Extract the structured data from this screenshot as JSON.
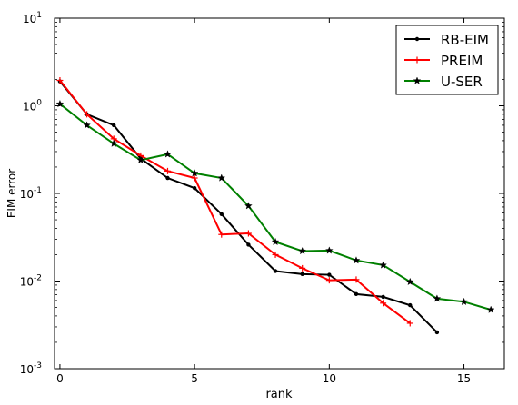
{
  "chart_data": {
    "type": "line",
    "xlabel": "rank",
    "ylabel": "EIM error",
    "xlim": [
      -0.2,
      16.5
    ],
    "ylim": [
      0.001,
      10
    ],
    "yscale": "log",
    "x_ticks": [
      0,
      5,
      10,
      15
    ],
    "x_tick_labels": [
      "0",
      "5",
      "10",
      "15"
    ],
    "y_ticks": [
      0.001,
      0.01,
      0.1,
      1,
      10
    ],
    "y_tick_labels": [
      {
        "base": "10",
        "exp": "-3"
      },
      {
        "base": "10",
        "exp": "-2"
      },
      {
        "base": "10",
        "exp": "-1"
      },
      {
        "base": "10",
        "exp": "0"
      },
      {
        "base": "10",
        "exp": "1"
      }
    ],
    "grid": false,
    "legend_position": "top-right",
    "series": [
      {
        "name": "RB-EIM",
        "color": "#000000",
        "marker": "dot",
        "x": [
          0,
          1,
          2,
          3,
          4,
          5,
          6,
          7,
          8,
          9,
          10,
          11,
          12,
          13,
          14
        ],
        "values": [
          1.9,
          0.8,
          0.6,
          0.25,
          0.15,
          0.115,
          0.058,
          0.026,
          0.013,
          0.012,
          0.0118,
          0.0071,
          0.0066,
          0.0053,
          0.0026
        ]
      },
      {
        "name": "PREIM",
        "color": "#ff0000",
        "marker": "plus",
        "x": [
          0,
          1,
          2,
          3,
          4,
          5,
          6,
          7,
          8,
          9,
          10,
          11,
          12,
          13
        ],
        "values": [
          1.95,
          0.8,
          0.42,
          0.27,
          0.18,
          0.15,
          0.034,
          0.035,
          0.02,
          0.014,
          0.0102,
          0.0104,
          0.0056,
          0.0033
        ]
      },
      {
        "name": "U-SER",
        "color": "#008000",
        "marker": "star",
        "x": [
          0,
          1,
          2,
          3,
          4,
          5,
          6,
          7,
          8,
          9,
          10,
          11,
          12,
          13,
          14,
          15,
          16
        ],
        "values": [
          1.05,
          0.6,
          0.37,
          0.24,
          0.28,
          0.17,
          0.15,
          0.072,
          0.028,
          0.022,
          0.0223,
          0.0172,
          0.0152,
          0.0098,
          0.0063,
          0.0058,
          0.0047
        ]
      }
    ]
  }
}
